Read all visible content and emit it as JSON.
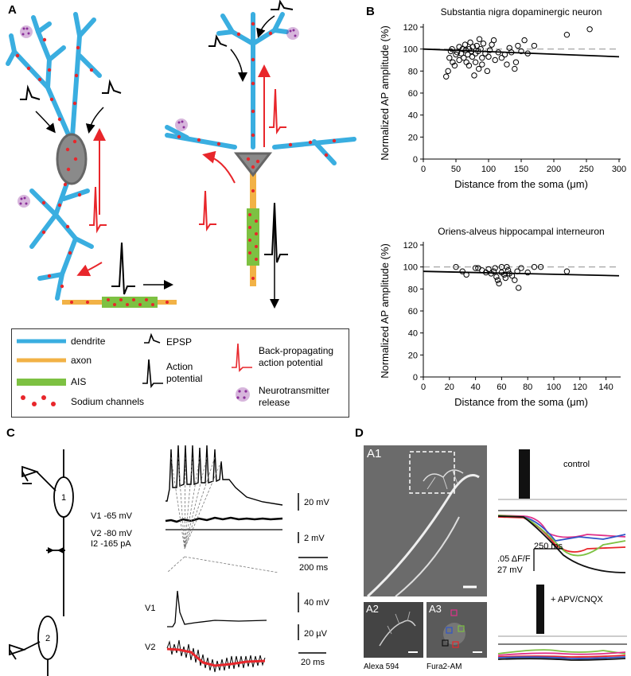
{
  "panels": {
    "a": "A",
    "b": "B",
    "c": "C",
    "d": "D"
  },
  "legend": {
    "dendrite": "dendrite",
    "axon": "axon",
    "ais": "AIS",
    "sodium": "Sodium channels",
    "epsp": "EPSP",
    "ap1": "Action",
    "ap2": "potential",
    "bp1": "Back-propagating",
    "bp2": "action potential",
    "nt1": "Neurotransmitter",
    "nt2": "release"
  },
  "colors": {
    "dendrite": "#3aaee0",
    "axon": "#f2b246",
    "ais": "#7dc142",
    "sodium": "#e8262b",
    "soma": "#8a8a8a",
    "release": "#8b2f9a",
    "bp_trace": "#e8262b"
  },
  "chart_data": [
    {
      "type": "scatter",
      "title": "Substantia nigra dopaminergic neuron",
      "xlabel": "Distance from the soma (μm)",
      "ylabel": "Normalized AP amplitude (%)",
      "xlim": [
        0,
        300
      ],
      "ylim": [
        0,
        120
      ],
      "xticks": [
        0,
        50,
        100,
        150,
        200,
        250,
        300
      ],
      "yticks": [
        0,
        20,
        40,
        60,
        80,
        100,
        120
      ],
      "reference_y": 100,
      "fit": {
        "x": [
          0,
          300
        ],
        "y": [
          100,
          93
        ]
      },
      "points": [
        [
          35,
          75
        ],
        [
          38,
          80
        ],
        [
          40,
          92
        ],
        [
          42,
          98
        ],
        [
          44,
          100
        ],
        [
          45,
          88
        ],
        [
          48,
          85
        ],
        [
          50,
          95
        ],
        [
          52,
          97
        ],
        [
          55,
          90
        ],
        [
          55,
          102
        ],
        [
          58,
          96
        ],
        [
          60,
          100
        ],
        [
          62,
          92
        ],
        [
          64,
          104
        ],
        [
          65,
          99
        ],
        [
          66,
          88
        ],
        [
          68,
          95
        ],
        [
          70,
          100
        ],
        [
          70,
          85
        ],
        [
          72,
          106
        ],
        [
          74,
          98
        ],
        [
          75,
          93
        ],
        [
          76,
          102
        ],
        [
          78,
          76
        ],
        [
          80,
          96
        ],
        [
          80,
          88
        ],
        [
          82,
          103
        ],
        [
          84,
          98
        ],
        [
          85,
          82
        ],
        [
          86,
          109
        ],
        [
          88,
          100
        ],
        [
          90,
          92
        ],
        [
          90,
          86
        ],
        [
          92,
          105
        ],
        [
          95,
          96
        ],
        [
          98,
          80
        ],
        [
          100,
          93
        ],
        [
          102,
          99
        ],
        [
          105,
          104
        ],
        [
          108,
          108
        ],
        [
          110,
          90
        ],
        [
          115,
          97
        ],
        [
          120,
          92
        ],
        [
          125,
          95
        ],
        [
          128,
          86
        ],
        [
          132,
          101
        ],
        [
          135,
          97
        ],
        [
          140,
          82
        ],
        [
          142,
          88
        ],
        [
          145,
          103
        ],
        [
          150,
          98
        ],
        [
          155,
          108
        ],
        [
          160,
          96
        ],
        [
          170,
          103
        ],
        [
          220,
          113
        ],
        [
          255,
          118
        ]
      ]
    },
    {
      "type": "scatter",
      "title": "Oriens-alveus hippocampal interneuron",
      "xlabel": "Distance from the soma (μm)",
      "ylabel": "Normalized AP amplitude (%)",
      "xlim": [
        0,
        150
      ],
      "ylim": [
        0,
        120
      ],
      "xticks": [
        0,
        20,
        40,
        60,
        80,
        100,
        120,
        140
      ],
      "yticks": [
        0,
        20,
        40,
        60,
        80,
        100,
        120
      ],
      "reference_y": 100,
      "fit": {
        "x": [
          0,
          150
        ],
        "y": [
          96,
          92
        ]
      },
      "points": [
        [
          25,
          100
        ],
        [
          30,
          96
        ],
        [
          33,
          93
        ],
        [
          40,
          99
        ],
        [
          42,
          99
        ],
        [
          45,
          97
        ],
        [
          48,
          95
        ],
        [
          50,
          98
        ],
        [
          52,
          94
        ],
        [
          54,
          96
        ],
        [
          55,
          99
        ],
        [
          56,
          91
        ],
        [
          57,
          88
        ],
        [
          58,
          85
        ],
        [
          60,
          100
        ],
        [
          60,
          95
        ],
        [
          62,
          93
        ],
        [
          63,
          90
        ],
        [
          64,
          100
        ],
        [
          65,
          97
        ],
        [
          66,
          94
        ],
        [
          68,
          92
        ],
        [
          70,
          88
        ],
        [
          72,
          96
        ],
        [
          73,
          81
        ],
        [
          75,
          99
        ],
        [
          80,
          95
        ],
        [
          85,
          100
        ],
        [
          90,
          100
        ],
        [
          110,
          96
        ]
      ]
    }
  ],
  "panel_c": {
    "v1_label": "V1 -65 mV",
    "v2_label": "V2 -80 mV",
    "i2_label": "I2 -165 pA",
    "scale_20mv": "20 mV",
    "scale_2mv": "2 mV",
    "scale_200ms": "200 ms",
    "scale_40mv": "40 mV",
    "scale_20uv": "20 µV",
    "scale_20ms": "20 ms",
    "inset_v1": "V1",
    "inset_v2": "V2",
    "neuron1": "1",
    "neuron2": "2"
  },
  "panel_d": {
    "a1": "A1",
    "a2": "A2",
    "a3": "A3",
    "alexa": "Alexa 594",
    "fura": "Fura2-AM",
    "control": "control",
    "apv": "+ APV/CNQX",
    "scale_ms": "250 ms",
    "scale_df": ".05 ΔF/F",
    "scale_mv": "27 mV"
  }
}
